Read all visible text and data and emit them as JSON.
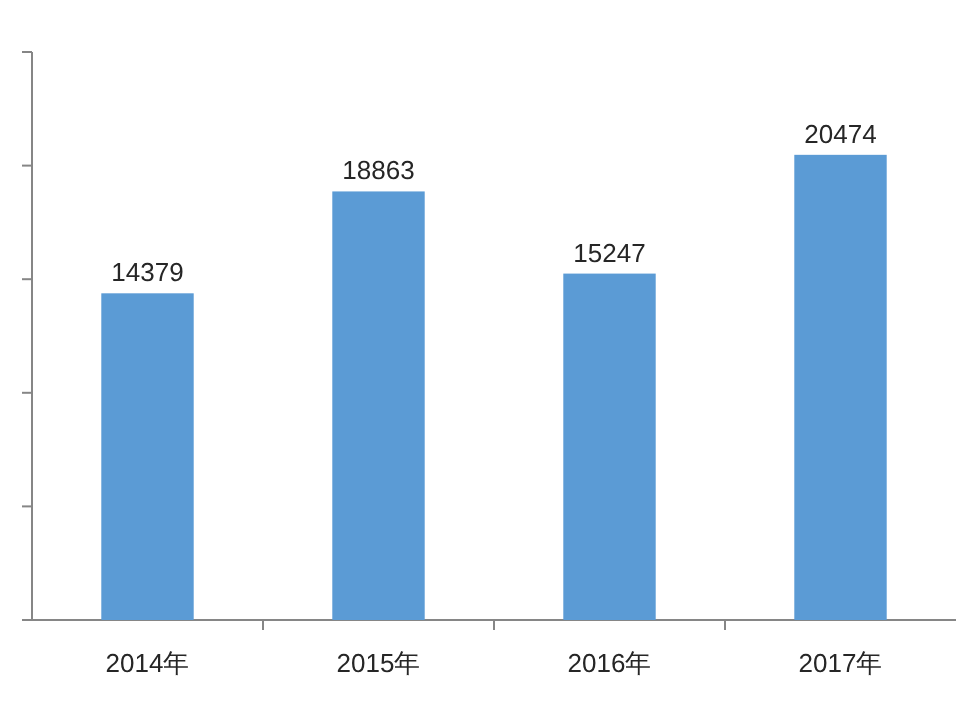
{
  "chart_data": {
    "type": "bar",
    "categories": [
      "2014年",
      "2015年",
      "2016年",
      "2017年"
    ],
    "values": [
      14379,
      18863,
      15247,
      20474
    ],
    "color": "#5b9bd5",
    "ylim": [
      0,
      25000
    ],
    "yticks": [
      {
        "value": 0,
        "label": null
      },
      {
        "value": 5000,
        "label": null
      },
      {
        "value": 10000,
        "label": null
      },
      {
        "value": 15000,
        "label": null
      },
      {
        "value": 20000,
        "label": null
      },
      {
        "value": 25000,
        "label": null
      }
    ],
    "tick_labels": "x",
    "data_labels": true,
    "grid": false
  }
}
